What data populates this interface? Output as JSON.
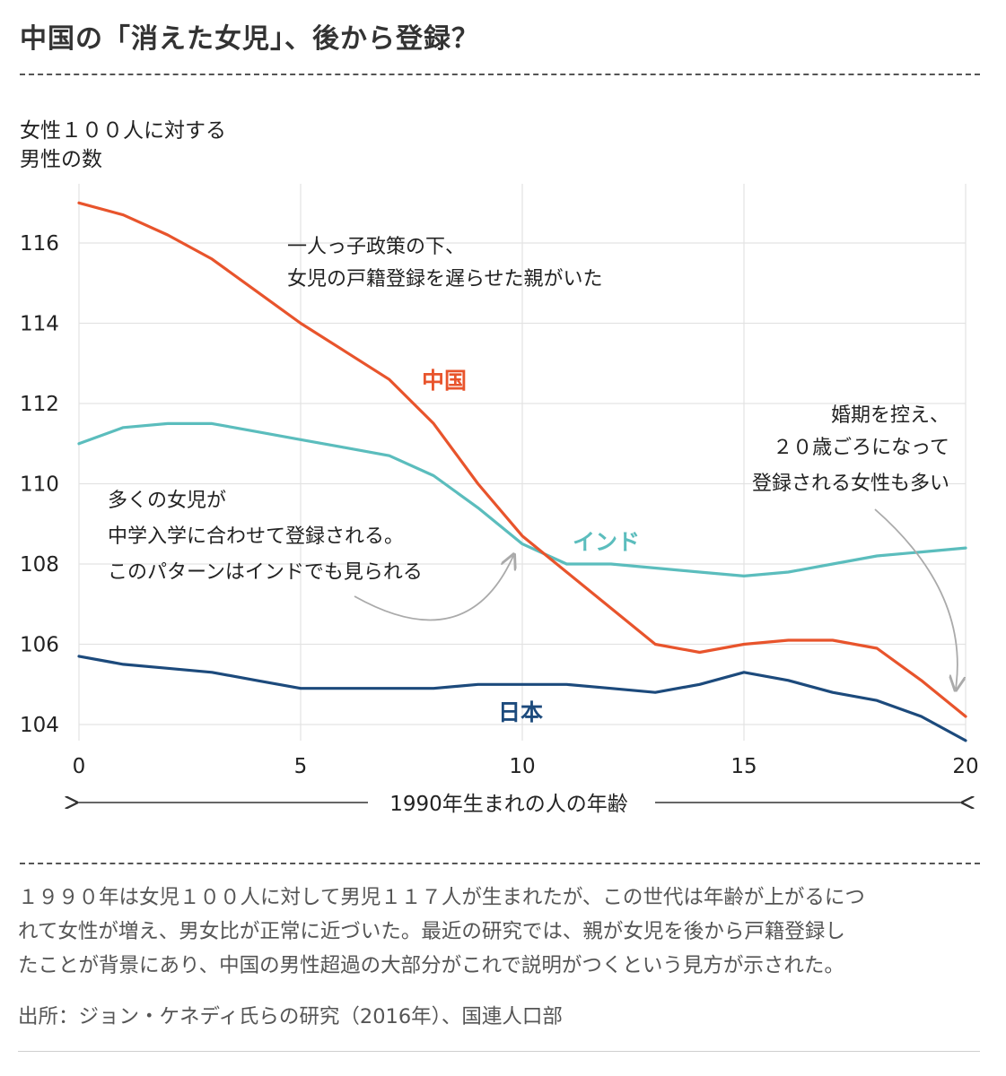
{
  "header": {
    "title": "中国の「消えた女児」、後から登録？"
  },
  "chart_data": {
    "type": "line",
    "ylabel_lines": [
      "女性１００人に対する",
      "男性の数"
    ],
    "xlabel": "1990年生まれの人の年齢",
    "xlim": [
      0,
      20
    ],
    "ylim": [
      104,
      117
    ],
    "x_ticks": [
      0,
      5,
      10,
      15,
      20
    ],
    "y_ticks": [
      104,
      106,
      108,
      110,
      112,
      114,
      116
    ],
    "grid": true,
    "series": [
      {
        "name": "中国",
        "color": "#e8542c",
        "x": [
          0,
          1,
          2,
          3,
          4,
          5,
          6,
          7,
          8,
          9,
          10,
          11,
          12,
          13,
          14,
          15,
          16,
          17,
          18,
          19,
          20
        ],
        "values": [
          117.0,
          116.7,
          116.2,
          115.6,
          114.8,
          114.0,
          113.3,
          112.6,
          111.5,
          110.0,
          108.7,
          107.8,
          106.9,
          106.0,
          105.8,
          106.0,
          106.1,
          106.1,
          105.9,
          105.1,
          104.2
        ]
      },
      {
        "name": "インド",
        "color": "#5bbdbd",
        "x": [
          0,
          1,
          2,
          3,
          4,
          5,
          6,
          7,
          8,
          9,
          10,
          11,
          12,
          13,
          14,
          15,
          16,
          17,
          18,
          19,
          20
        ],
        "values": [
          111.0,
          111.4,
          111.5,
          111.5,
          111.3,
          111.1,
          110.9,
          110.7,
          110.2,
          109.4,
          108.5,
          108.0,
          108.0,
          107.9,
          107.8,
          107.7,
          107.8,
          108.0,
          108.2,
          108.3,
          108.4
        ]
      },
      {
        "name": "日本",
        "color": "#1c4a7c",
        "x": [
          0,
          1,
          2,
          3,
          4,
          5,
          6,
          7,
          8,
          9,
          10,
          11,
          12,
          13,
          14,
          15,
          16,
          17,
          18,
          19,
          20
        ],
        "values": [
          105.7,
          105.5,
          105.4,
          105.3,
          105.1,
          104.9,
          104.9,
          104.9,
          104.9,
          105.0,
          105.0,
          105.0,
          104.9,
          104.8,
          105.0,
          105.3,
          105.1,
          104.8,
          104.6,
          104.2,
          103.6
        ]
      }
    ],
    "annotations": [
      {
        "lines": [
          "一人っ子政策の下、",
          "女児の戸籍登録を遅らせた親がいた"
        ]
      },
      {
        "lines": [
          "多くの女児が",
          "中学入学に合わせて登録される。",
          "このパターンはインドでも見られる"
        ]
      },
      {
        "lines": [
          "婚期を控え、",
          "２０歳ごろになって",
          "登録される女性も多い"
        ]
      }
    ]
  },
  "caption": {
    "lines": [
      "１９９０年は女児１００人に対して男児１１７人が生まれたが、この世代は年齢が上がるにつ",
      "れて女性が増え、男女比が正常に近づいた。最近の研究では、親が女児を後から戸籍登録し",
      "たことが背景にあり、中国の男性超過の大部分がこれで説明がつくという見方が示された。"
    ],
    "source": "出所：ジョン・ケネディ氏らの研究（2016年）、国連人口部"
  }
}
